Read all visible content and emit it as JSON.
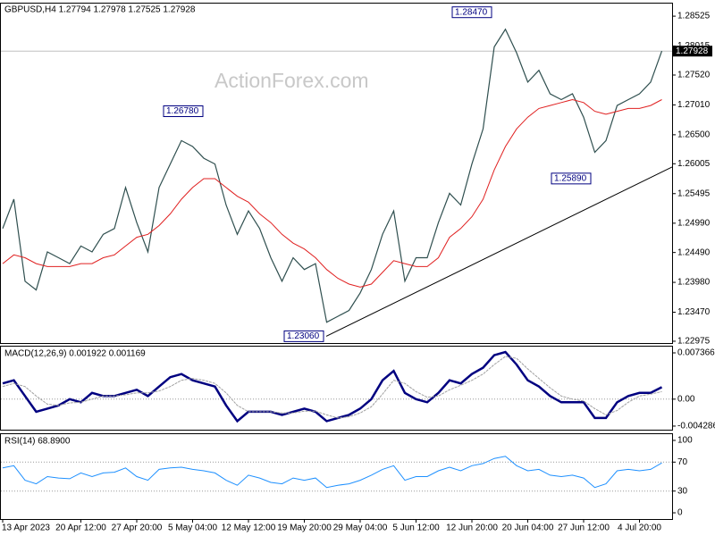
{
  "chart_data": [
    {
      "type": "line",
      "title": "GBPUSD,H4 1.27794 1.27978 1.27525 1.27928",
      "watermark": "ActionForex.com",
      "categories": [
        "13 Apr 2023",
        null,
        null,
        null,
        null,
        null,
        null,
        "20 Apr 12:00",
        null,
        null,
        null,
        null,
        "27 Apr 20:00",
        null,
        null,
        null,
        null,
        "5 May 04:00",
        null,
        null,
        null,
        null,
        "12 May 12:00",
        null,
        null,
        null,
        null,
        "19 May 20:00",
        null,
        null,
        null,
        null,
        "29 May 04:00",
        null,
        null,
        null,
        null,
        "5 Jun 12:00",
        null,
        null,
        null,
        null,
        "12 Jun 20:00",
        null,
        null,
        null,
        null,
        "20 Jun 04:00",
        null,
        null,
        null,
        null,
        "27 Jun 12:00",
        null,
        null,
        null,
        null,
        "4 Jul 20:00",
        null,
        null
      ],
      "series": [
        {
          "color": "#2f4f4f",
          "values": [
            1.249,
            1.254,
            1.24,
            1.2385,
            1.245,
            1.244,
            1.243,
            1.246,
            1.245,
            1.248,
            1.249,
            1.256,
            1.25,
            1.245,
            1.256,
            1.26,
            1.264,
            1.263,
            1.261,
            1.26,
            1.253,
            1.248,
            1.252,
            1.249,
            1.244,
            1.24,
            1.244,
            1.242,
            1.243,
            1.233,
            1.234,
            1.235,
            1.238,
            1.242,
            1.248,
            1.252,
            1.24,
            1.244,
            1.244,
            1.25,
            1.255,
            1.253,
            1.26,
            1.266,
            1.28,
            1.283,
            1.279,
            1.274,
            1.276,
            1.272,
            1.271,
            1.272,
            1.268,
            1.262,
            1.264,
            1.27,
            1.271,
            1.272,
            1.274,
            1.2793
          ]
        },
        {
          "color": "#e02020",
          "values": [
            1.243,
            1.2445,
            1.244,
            1.243,
            1.2425,
            1.2425,
            1.2425,
            1.243,
            1.243,
            1.244,
            1.2445,
            1.246,
            1.2475,
            1.248,
            1.2495,
            1.2515,
            1.254,
            1.256,
            1.2575,
            1.2575,
            1.256,
            1.2545,
            1.2535,
            1.2515,
            1.25,
            1.248,
            1.2465,
            1.2455,
            1.244,
            1.242,
            1.2405,
            1.2395,
            1.239,
            1.2395,
            1.2415,
            1.2435,
            1.243,
            1.2425,
            1.2425,
            1.244,
            1.2475,
            1.249,
            1.251,
            1.254,
            1.259,
            1.263,
            1.266,
            1.268,
            1.2695,
            1.27,
            1.2705,
            1.271,
            1.2705,
            1.269,
            1.2685,
            1.269,
            1.2695,
            1.2695,
            1.27,
            1.271
          ]
        }
      ],
      "ylim": [
        1.22944,
        1.2874
      ],
      "yticks": [
        1.28525,
        1.28015,
        {
          "value": 1.2752,
          "label": "1.27520"
        },
        {
          "value": 1.2701,
          "label": "1.27010"
        },
        {
          "value": 1.265,
          "label": "1.26500"
        },
        1.26005,
        1.25495,
        {
          "value": 1.2499,
          "label": "1.24990"
        },
        {
          "value": 1.2449,
          "label": "1.24490"
        },
        {
          "value": 1.2398,
          "label": "1.23980"
        },
        {
          "value": 1.2347,
          "label": "1.23470"
        },
        1.22975
      ],
      "last_price": 1.27928,
      "annotations": [
        {
          "value": 1.2847,
          "label": "1.28470"
        },
        {
          "value": 1.2678,
          "label": "1.26780"
        },
        {
          "value": 1.2589,
          "label": "1.25890"
        },
        {
          "value": 1.2306,
          "label": "1.23060"
        }
      ],
      "trendline": [
        1.2306,
        1.2595
      ]
    },
    {
      "type": "line",
      "title": "MACD(12,26,9) 0.001922 0.001169",
      "series": [
        {
          "color": "#000080",
          "values": [
            0.0025,
            0.003,
            0.0005,
            -0.002,
            -0.0015,
            -0.001,
            0,
            -0.0005,
            0.001,
            0.0005,
            0.0005,
            0.001,
            0.0015,
            0.0005,
            0.002,
            0.0035,
            0.004,
            0.003,
            0.0025,
            0.002,
            -0.001,
            -0.0035,
            -0.002,
            -0.002,
            -0.002,
            -0.0025,
            -0.002,
            -0.0015,
            -0.002,
            -0.0035,
            -0.003,
            -0.0025,
            -0.0015,
            0,
            0.003,
            0.0045,
            0.001,
            0,
            -0.0005,
            0.001,
            0.003,
            0.0025,
            0.004,
            0.005,
            0.007,
            0.0075,
            0.0055,
            0.003,
            0.002,
            0.0005,
            -0.0005,
            -0.0005,
            -0.0005,
            -0.003,
            -0.003,
            -0.0005,
            0.0005,
            0.001,
            0.001,
            0.0019
          ]
        },
        {
          "color": "#a0a0a0",
          "values": [
            0.002,
            0.0025,
            0.002,
            0.0005,
            -0.0008,
            -0.001,
            -0.0006,
            -0.0005,
            0,
            0.0005,
            0.0005,
            0.0007,
            0.001,
            0.001,
            0.0013,
            0.002,
            0.003,
            0.0033,
            0.003,
            0.0025,
            0.001,
            -0.001,
            -0.002,
            -0.002,
            -0.002,
            -0.0022,
            -0.0022,
            -0.0019,
            -0.0019,
            -0.0025,
            -0.003,
            -0.0028,
            -0.0022,
            -0.0012,
            0.0008,
            0.003,
            0.0025,
            0.0012,
            0.0003,
            0.0005,
            0.0015,
            0.0022,
            0.003,
            0.004,
            0.0055,
            0.0068,
            0.0065,
            0.0048,
            0.0033,
            0.0018,
            0.0005,
            0,
            -0.0003,
            -0.0015,
            -0.0025,
            -0.0018,
            -0.0005,
            0.0005,
            0.0008,
            0.0012
          ]
        }
      ],
      "ylim": [
        -0.00486,
        0.00836
      ],
      "yticks": [
        0.007366,
        {
          "value": 0,
          "label": "0.00"
        },
        -0.004286
      ],
      "grid": true
    },
    {
      "type": "line",
      "title": "RSI(14) 68.8900",
      "series": [
        {
          "color": "#1e90ff",
          "values": [
            62,
            65,
            45,
            40,
            50,
            48,
            47,
            55,
            50,
            55,
            56,
            62,
            50,
            45,
            60,
            62,
            63,
            60,
            58,
            55,
            45,
            38,
            52,
            48,
            42,
            40,
            48,
            45,
            48,
            35,
            38,
            40,
            45,
            52,
            60,
            65,
            45,
            50,
            50,
            58,
            63,
            58,
            65,
            68,
            75,
            78,
            65,
            58,
            60,
            52,
            50,
            52,
            48,
            35,
            40,
            58,
            60,
            58,
            60,
            68.89
          ]
        }
      ],
      "ylim": [
        -8.6,
        108.6
      ],
      "yticks": [
        100,
        70,
        30,
        0
      ],
      "grid": true
    }
  ]
}
